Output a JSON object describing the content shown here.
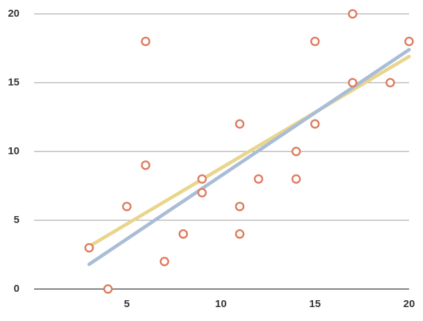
{
  "chart_data": {
    "type": "scatter",
    "x": [
      3,
      4,
      5,
      6,
      6,
      7,
      8,
      9,
      9,
      11,
      11,
      11,
      12,
      14,
      14,
      15,
      15,
      17,
      17,
      19,
      20
    ],
    "values": [
      3,
      0,
      6,
      18,
      9,
      2,
      4,
      8,
      7,
      12,
      6,
      4,
      8,
      10,
      8,
      18,
      12,
      20,
      15,
      15,
      18
    ],
    "color": "#de7b5e",
    "xlim": [
      0,
      20
    ],
    "ylim": [
      0,
      20
    ],
    "xticks": [
      5,
      10,
      15,
      20
    ],
    "yticks": [
      0,
      5,
      10,
      15,
      20
    ],
    "grid": true,
    "trendlines": [
      {
        "color": "#e9d58c",
        "x": [
          3,
          20
        ],
        "values": [
          3.1,
          16.9
        ]
      },
      {
        "color": "#a9bdd7",
        "x": [
          3,
          20
        ],
        "values": [
          1.8,
          17.4
        ]
      }
    ]
  }
}
